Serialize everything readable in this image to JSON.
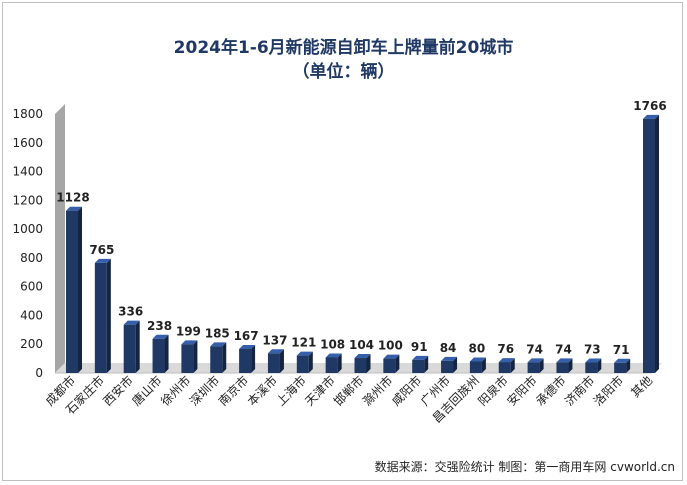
{
  "chart_data": {
    "type": "bar",
    "title": "2024年1-6月新能源自卸车上牌量前20城市",
    "subtitle": "（单位：辆）",
    "categories": [
      "成都市",
      "石家庄市",
      "西安市",
      "唐山市",
      "徐州市",
      "深圳市",
      "南京市",
      "本溪市",
      "上海市",
      "天津市",
      "邯郸市",
      "滁州市",
      "咸阳市",
      "广州市",
      "昌吉回族州",
      "阳泉市",
      "安阳市",
      "承德市",
      "济南市",
      "洛阳市",
      "其他"
    ],
    "values": [
      1128,
      765,
      336,
      238,
      199,
      185,
      167,
      137,
      121,
      108,
      104,
      100,
      91,
      84,
      80,
      76,
      74,
      74,
      73,
      71,
      1766
    ],
    "ylim": [
      0,
      1800
    ],
    "yticks": [
      0,
      200,
      400,
      600,
      800,
      1000,
      1200,
      1400,
      1600,
      1800
    ],
    "data_labels": true,
    "bar_color": "#1f3864",
    "wall_color": "#a6a6a6"
  },
  "footer": {
    "source": "数据来源：交强险统计 制图：第一商用车网 cvworld.cn"
  }
}
